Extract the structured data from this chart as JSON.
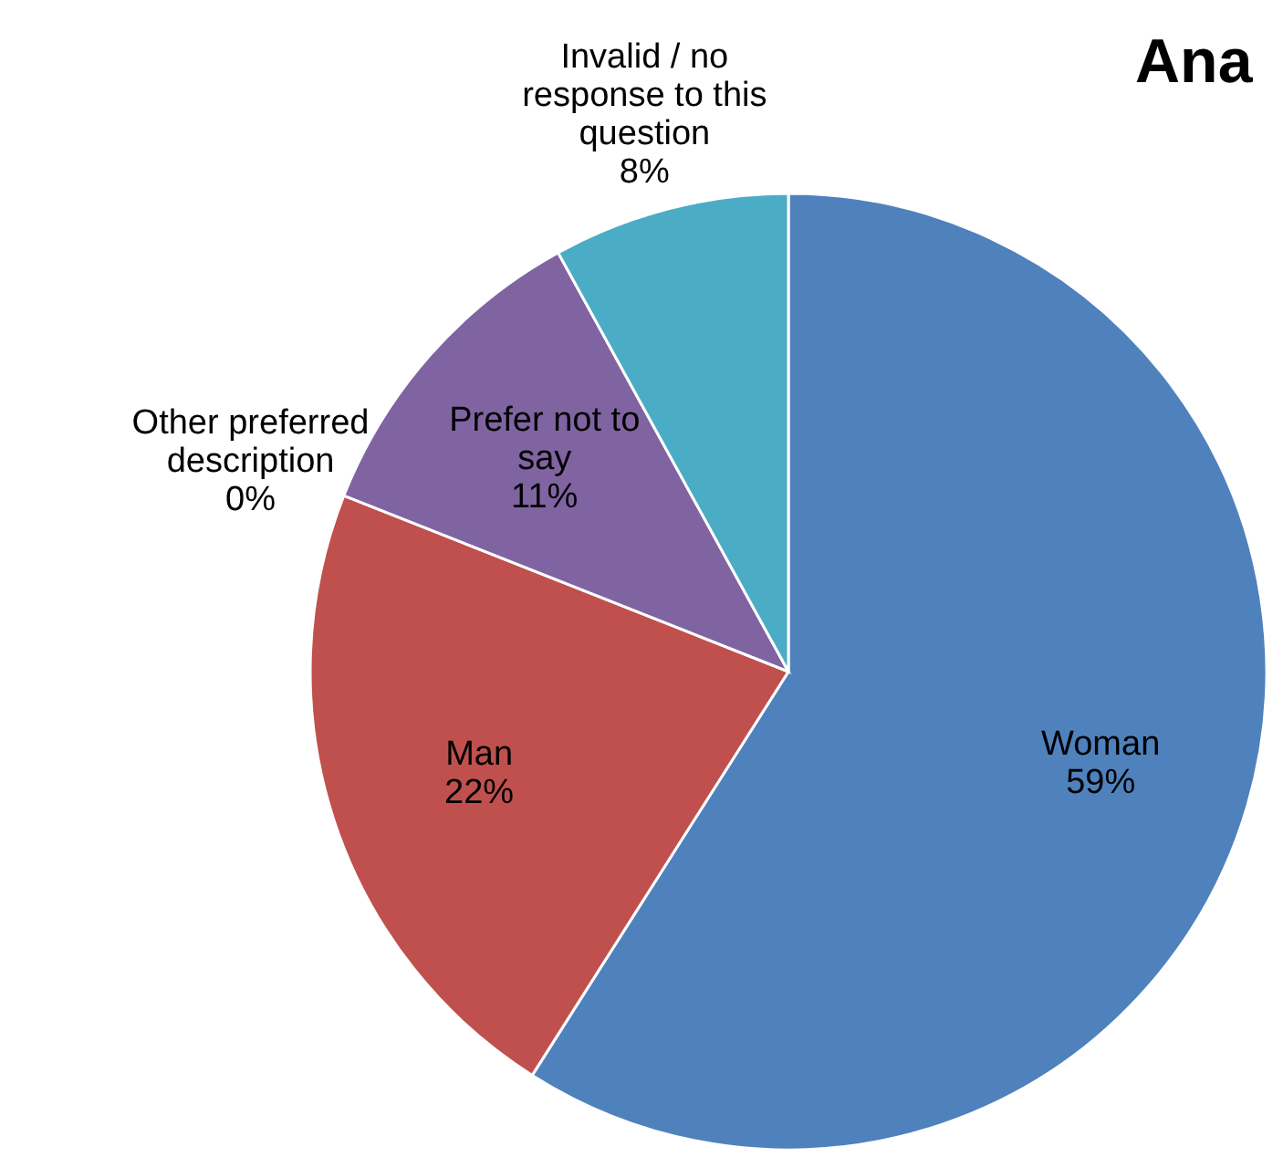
{
  "chart_data": {
    "type": "pie",
    "title": "Ana",
    "categories": [
      "Woman",
      "Man",
      "Other preferred description",
      "Prefer not to say",
      "Invalid / no response to this question"
    ],
    "values": [
      59,
      22,
      0,
      11,
      8
    ],
    "colors": [
      "#4f81bd",
      "#c0504d",
      "#9bbb59",
      "#8064a2",
      "#4bacc6"
    ],
    "value_labels": [
      "59%",
      "22%",
      "0%",
      "11%",
      "8%"
    ]
  }
}
